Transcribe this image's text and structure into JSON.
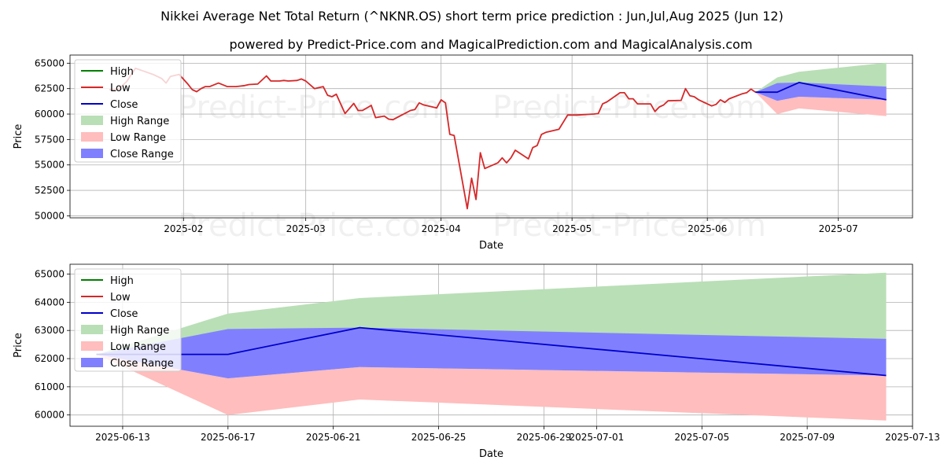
{
  "title": "Nikkei Average Net Total Return (^NKNR.OS) short term price prediction : Jun,Jul,Aug 2025 (Jun 12)",
  "subtitle": "powered by Predict-Price.com and MagicalPrediction.com and MagicalAnalysis.com",
  "watermark": "Predict-Price.com",
  "chart_data": [
    {
      "type": "line",
      "xlabel": "Date",
      "ylabel": "Price",
      "x_range": [
        "2025-01-06",
        "2025-07-18"
      ],
      "ylim": [
        49800,
        65800
      ],
      "grid": true,
      "legend_position": "top-left",
      "legend": [
        "High",
        "Low",
        "Close",
        "High Range",
        "Low Range",
        "Close Range"
      ],
      "x_ticks": [
        {
          "date": "2025-02-01",
          "label": "2025-02"
        },
        {
          "date": "2025-03-01",
          "label": "2025-03"
        },
        {
          "date": "2025-04-01",
          "label": "2025-04"
        },
        {
          "date": "2025-05-01",
          "label": "2025-05"
        },
        {
          "date": "2025-06-01",
          "label": "2025-06"
        },
        {
          "date": "2025-07-01",
          "label": "2025-07"
        }
      ],
      "y_ticks": [
        50000,
        52500,
        55000,
        57500,
        60000,
        62500,
        65000
      ],
      "y_tick_labels": [
        "50000",
        "52500",
        "55000",
        "57500",
        "60000",
        "62500",
        "65000"
      ],
      "colors": {
        "high": "#008000",
        "low": "#d62728",
        "close": "#0000cc",
        "high_range": "#b9dfb6",
        "low_range": "#ffbdbd",
        "close_range": "#8080ff"
      },
      "series": [
        {
          "name": "Low",
          "dates": [
            "2025-01-15",
            "2025-01-17",
            "2025-01-19",
            "2025-01-21",
            "2025-01-23",
            "2025-01-25",
            "2025-01-27",
            "2025-01-28",
            "2025-01-29",
            "2025-01-31",
            "2025-02-02",
            "2025-02-03",
            "2025-02-04",
            "2025-02-05",
            "2025-02-06",
            "2025-02-07",
            "2025-02-09",
            "2025-02-11",
            "2025-02-13",
            "2025-02-14",
            "2025-02-15",
            "2025-02-16",
            "2025-02-18",
            "2025-02-20",
            "2025-02-21",
            "2025-02-22",
            "2025-02-23",
            "2025-02-24",
            "2025-02-25",
            "2025-02-27",
            "2025-02-28",
            "2025-03-01",
            "2025-03-03",
            "2025-03-04",
            "2025-03-05",
            "2025-03-06",
            "2025-03-07",
            "2025-03-08",
            "2025-03-10",
            "2025-03-12",
            "2025-03-13",
            "2025-03-14",
            "2025-03-16",
            "2025-03-17",
            "2025-03-19",
            "2025-03-20",
            "2025-03-21",
            "2025-03-23",
            "2025-03-25",
            "2025-03-26",
            "2025-03-27",
            "2025-03-28",
            "2025-03-31",
            "2025-04-01",
            "2025-04-02",
            "2025-04-03",
            "2025-04-04",
            "2025-04-07",
            "2025-04-08",
            "2025-04-09",
            "2025-04-10",
            "2025-04-11",
            "2025-04-14",
            "2025-04-15",
            "2025-04-16",
            "2025-04-17",
            "2025-04-18",
            "2025-04-21",
            "2025-04-22",
            "2025-04-23",
            "2025-04-24",
            "2025-04-25",
            "2025-04-28",
            "2025-04-30",
            "2025-05-01",
            "2025-05-02",
            "2025-05-06",
            "2025-05-07",
            "2025-05-08",
            "2025-05-09",
            "2025-05-12",
            "2025-05-13",
            "2025-05-14",
            "2025-05-15",
            "2025-05-16",
            "2025-05-19",
            "2025-05-20",
            "2025-05-21",
            "2025-05-22",
            "2025-05-23",
            "2025-05-26",
            "2025-05-27",
            "2025-05-28",
            "2025-05-29",
            "2025-05-30",
            "2025-06-02",
            "2025-06-03",
            "2025-06-04",
            "2025-06-05",
            "2025-06-06",
            "2025-06-09",
            "2025-06-10",
            "2025-06-11",
            "2025-06-12"
          ],
          "values": [
            62400,
            62400,
            63200,
            64500,
            64200,
            63900,
            63500,
            63050,
            63700,
            63900,
            62950,
            62400,
            62200,
            62500,
            62700,
            62700,
            63050,
            62700,
            62700,
            62750,
            62800,
            62900,
            62950,
            63750,
            63250,
            63250,
            63250,
            63300,
            63250,
            63300,
            63450,
            63250,
            62500,
            62600,
            62700,
            61850,
            61700,
            61950,
            60050,
            61050,
            60350,
            60350,
            60850,
            59650,
            59800,
            59500,
            59450,
            59900,
            60350,
            60450,
            61100,
            60900,
            60600,
            61400,
            61100,
            58000,
            57900,
            50700,
            53700,
            51600,
            56200,
            54650,
            55200,
            55700,
            55200,
            55700,
            56450,
            55600,
            56700,
            56900,
            58000,
            58200,
            58500,
            59900,
            59900,
            59900,
            60000,
            60050,
            61000,
            61200,
            62100,
            62100,
            61500,
            61500,
            61000,
            61000,
            60250,
            60700,
            60900,
            61300,
            61350,
            62500,
            61800,
            61700,
            61400,
            60800,
            60950,
            61400,
            61150,
            61500,
            62000,
            62100,
            62450,
            62150
          ]
        },
        {
          "name": "Close",
          "dates": [
            "2025-06-12",
            "2025-06-17",
            "2025-06-22",
            "2025-07-12"
          ],
          "values": [
            62150,
            62150,
            63100,
            61400
          ]
        },
        {
          "name": "High Range",
          "dates": [
            "2025-06-12",
            "2025-06-17",
            "2025-06-22",
            "2025-07-12"
          ],
          "upper": [
            62150,
            63600,
            64150,
            65050
          ],
          "lower": [
            62150,
            62150,
            63100,
            61400
          ]
        },
        {
          "name": "Low Range",
          "dates": [
            "2025-06-12",
            "2025-06-17",
            "2025-06-22",
            "2025-07-12"
          ],
          "upper": [
            62150,
            61300,
            61700,
            61400
          ],
          "lower": [
            62150,
            60000,
            60550,
            59800
          ]
        },
        {
          "name": "Close Range",
          "dates": [
            "2025-06-12",
            "2025-06-17",
            "2025-06-22",
            "2025-07-12"
          ],
          "upper": [
            62150,
            63050,
            63100,
            62700
          ],
          "lower": [
            62150,
            61300,
            61700,
            61400
          ]
        }
      ]
    },
    {
      "type": "line",
      "xlabel": "Date",
      "ylabel": "Price",
      "x_range": [
        "2025-06-11",
        "2025-07-13"
      ],
      "ylim": [
        59600,
        65350
      ],
      "grid": true,
      "legend_position": "top-left",
      "legend": [
        "High",
        "Low",
        "Close",
        "High Range",
        "Low Range",
        "Close Range"
      ],
      "x_ticks": [
        {
          "date": "2025-06-13",
          "label": "2025-06-13"
        },
        {
          "date": "2025-06-17",
          "label": "2025-06-17"
        },
        {
          "date": "2025-06-21",
          "label": "2025-06-21"
        },
        {
          "date": "2025-06-25",
          "label": "2025-06-25"
        },
        {
          "date": "2025-06-29",
          "label": "2025-06-29"
        },
        {
          "date": "2025-07-01",
          "label": "2025-07-01"
        },
        {
          "date": "2025-07-05",
          "label": "2025-07-05"
        },
        {
          "date": "2025-07-09",
          "label": "2025-07-09"
        },
        {
          "date": "2025-07-13",
          "label": "2025-07-13"
        }
      ],
      "y_ticks": [
        60000,
        61000,
        62000,
        63000,
        64000,
        65000
      ],
      "y_tick_labels": [
        "60000",
        "61000",
        "62000",
        "63000",
        "64000",
        "65000"
      ],
      "colors": {
        "high": "#008000",
        "low": "#d62728",
        "close": "#0000cc",
        "high_range": "#b9dfb6",
        "low_range": "#ffbdbd",
        "close_range": "#8080ff"
      },
      "series": [
        {
          "name": "Close",
          "dates": [
            "2025-06-12",
            "2025-06-17",
            "2025-06-22",
            "2025-07-12"
          ],
          "values": [
            62150,
            62150,
            63100,
            61400
          ]
        },
        {
          "name": "High Range",
          "dates": [
            "2025-06-12",
            "2025-06-17",
            "2025-06-22",
            "2025-07-12"
          ],
          "upper": [
            62150,
            63600,
            64150,
            65050
          ],
          "lower": [
            62150,
            62150,
            63100,
            61400
          ]
        },
        {
          "name": "Low Range",
          "dates": [
            "2025-06-12",
            "2025-06-17",
            "2025-06-22",
            "2025-07-12"
          ],
          "upper": [
            62150,
            61300,
            61700,
            61400
          ],
          "lower": [
            62150,
            60000,
            60550,
            59800
          ]
        },
        {
          "name": "Close Range",
          "dates": [
            "2025-06-12",
            "2025-06-17",
            "2025-06-22",
            "2025-07-12"
          ],
          "upper": [
            62150,
            63050,
            63100,
            62700
          ],
          "lower": [
            62150,
            61300,
            61700,
            61400
          ]
        }
      ]
    }
  ]
}
